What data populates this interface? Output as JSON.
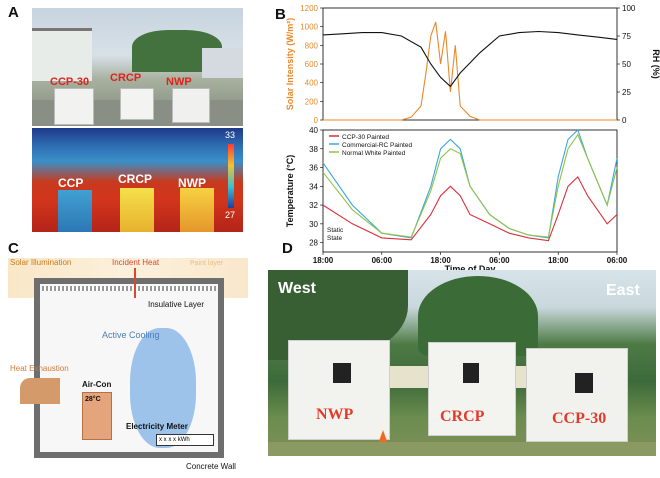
{
  "labels": {
    "a": "A",
    "b": "B",
    "c": "C",
    "d": "D"
  },
  "panel_a": {
    "photo_labels": [
      "CCP-30",
      "CRCP",
      "NWP"
    ],
    "thermal_labels": [
      "CCP",
      "CRCP",
      "NWP"
    ],
    "scale_max": "33",
    "scale_min": "27"
  },
  "panel_c": {
    "solar_illumination": "Solar Illumination",
    "incident_heat": "Incident Heat",
    "paint_layer": "Paint layer",
    "insulative_layer": "Insulative Layer",
    "active_cooling": "Active Cooling",
    "heat_exhaustion": "Heat Exhaustion",
    "aircon": "Air-Con",
    "aircon_temp": "28°C",
    "electricity_meter": "Electricity Meter",
    "meter_digits": "x x x x",
    "meter_unit": "kWh",
    "concrete_wall": "Concrete Wall"
  },
  "panel_d": {
    "west": "West",
    "east": "East",
    "sheds": [
      "NWP",
      "CRCP",
      "CCP-30"
    ]
  },
  "chart_data": [
    {
      "type": "line",
      "ylabel": "Solar Intensity (W/m²)",
      "y2label": "RH (%)",
      "ylim": [
        0,
        1200
      ],
      "y2lim": [
        0,
        100
      ],
      "yticks": [
        "0",
        "200",
        "400",
        "600",
        "800",
        "1000",
        "1200"
      ],
      "y2ticks": [
        "0",
        "25",
        "50",
        "75",
        "100"
      ],
      "colors": {
        "solar": "#e8892b",
        "rh": "#111111"
      },
      "series": [
        {
          "axis": "left",
          "x": [
            0,
            3,
            6,
            8,
            9,
            10,
            10.5,
            11,
            11.5,
            12,
            12.5,
            13,
            13.5,
            14,
            15,
            16,
            17,
            18,
            18.5,
            19,
            19.5,
            20,
            20.5,
            21,
            22,
            23,
            24,
            26,
            27,
            28,
            29,
            30
          ],
          "values": [
            0,
            0,
            0,
            0,
            30,
            150,
            500,
            900,
            1050,
            600,
            950,
            300,
            800,
            150,
            40,
            0,
            0,
            0,
            0,
            0,
            0,
            0,
            0,
            0,
            0,
            0,
            0,
            0,
            0,
            0,
            0,
            0
          ]
        },
        {
          "axis": "right",
          "x": [
            0,
            2,
            4,
            6,
            8,
            10,
            11,
            12,
            13,
            14,
            16,
            18,
            20,
            22,
            24,
            26,
            28,
            30
          ],
          "values": [
            76,
            77,
            78,
            78,
            75,
            65,
            50,
            38,
            30,
            42,
            60,
            75,
            78,
            79,
            78,
            76,
            74,
            72
          ]
        }
      ]
    },
    {
      "type": "line",
      "xlabel": "Time of Day",
      "ylabel": "Temperature (°C)",
      "ylim": [
        27,
        40
      ],
      "yticks": [
        "28",
        "30",
        "32",
        "34",
        "36",
        "38",
        "40"
      ],
      "xticks": [
        "18:00",
        "06:00",
        "18:00",
        "06:00",
        "18:00",
        "06:00"
      ],
      "annotation": "Static State",
      "series": [
        {
          "name": "CCP-30 Painted",
          "color": "#d9303b",
          "x": [
            0,
            3,
            6,
            9,
            11,
            12,
            13,
            14,
            15,
            17,
            19,
            21,
            23,
            24,
            25,
            26,
            27,
            29,
            30
          ],
          "values": [
            32,
            30,
            28.5,
            28.3,
            31,
            33,
            34,
            33,
            31,
            30,
            29,
            28.5,
            28.2,
            31,
            34,
            35,
            33,
            30,
            31
          ]
        },
        {
          "name": "Commercial-RC Painted",
          "color": "#3aa7e0",
          "x": [
            0,
            3,
            6,
            9,
            11,
            12,
            13,
            14,
            15,
            17,
            19,
            21,
            23,
            24,
            25,
            26,
            27,
            29,
            30
          ],
          "values": [
            36.5,
            32,
            29,
            28.5,
            34,
            38,
            39,
            38,
            34,
            31,
            29.5,
            28.8,
            28.5,
            35,
            39,
            40,
            37,
            32,
            37
          ]
        },
        {
          "name": "Normal White Painted",
          "color": "#8fc34a",
          "x": [
            0,
            3,
            6,
            9,
            11,
            12,
            13,
            14,
            15,
            17,
            19,
            21,
            23,
            24,
            25,
            26,
            27,
            29,
            30
          ],
          "values": [
            35.5,
            31.5,
            29,
            28.6,
            33.5,
            37,
            38,
            37.5,
            34,
            31,
            29.5,
            28.8,
            28.6,
            34,
            38,
            39.5,
            37,
            32,
            36
          ]
        }
      ]
    }
  ]
}
